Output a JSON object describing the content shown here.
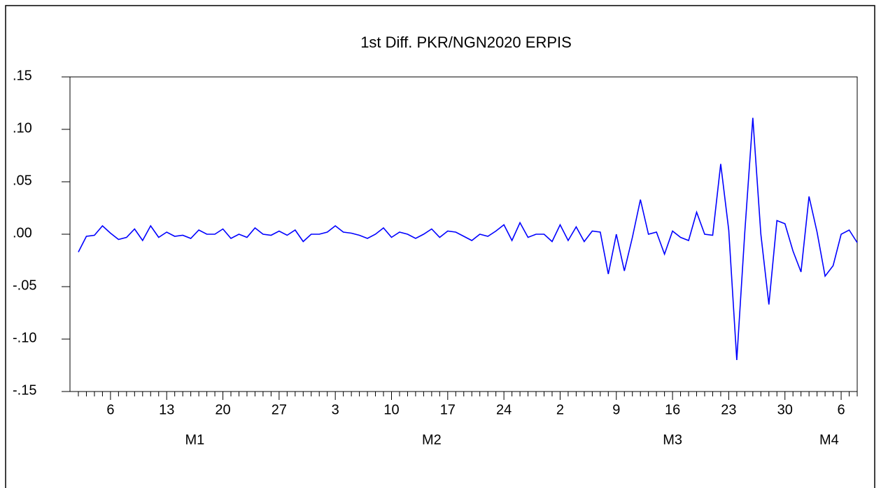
{
  "chart_data": {
    "type": "line",
    "title": "1st Diff. PKR/NGN2020 ERPIS",
    "categories": [
      null,
      null,
      null,
      null,
      6,
      null,
      null,
      null,
      null,
      null,
      null,
      13,
      null,
      null,
      null,
      null,
      null,
      null,
      20,
      null,
      null,
      null,
      null,
      null,
      null,
      27,
      null,
      null,
      null,
      null,
      null,
      null,
      3,
      null,
      null,
      null,
      null,
      null,
      null,
      10,
      null,
      null,
      null,
      null,
      null,
      null,
      17,
      null,
      null,
      null,
      null,
      null,
      null,
      24,
      null,
      null,
      null,
      null,
      null,
      null,
      2,
      null,
      null,
      null,
      null,
      null,
      null,
      9,
      null,
      null,
      null,
      null,
      null,
      null,
      16,
      null,
      null,
      null,
      null,
      null,
      null,
      23,
      null,
      null,
      null,
      null,
      null,
      null,
      30,
      null,
      null,
      null,
      null,
      null,
      null,
      6,
      null,
      null
    ],
    "months": [
      "M1",
      "M2",
      "M3",
      "M4"
    ],
    "series": [
      {
        "name": "1st Diff. PKR/NGN2020 ERPIS",
        "color": "#0000ff",
        "values": [
          -0.017,
          -0.002,
          -0.001,
          0.008,
          0.001,
          -0.005,
          -0.003,
          0.005,
          -0.006,
          0.008,
          -0.003,
          0.002,
          -0.002,
          -0.001,
          -0.004,
          0.004,
          0.0,
          0.0,
          0.005,
          -0.004,
          0.0,
          -0.003,
          0.006,
          0.0,
          -0.001,
          0.003,
          -0.001,
          0.004,
          -0.007,
          0.0,
          0.0,
          0.002,
          0.008,
          0.002,
          0.001,
          -0.001,
          -0.004,
          0.0,
          0.006,
          -0.003,
          0.002,
          0.0,
          -0.004,
          0.0,
          0.005,
          -0.003,
          0.003,
          0.002,
          -0.002,
          -0.006,
          0.0,
          -0.002,
          0.003,
          0.009,
          -0.006,
          0.011,
          -0.003,
          0.0,
          0.0,
          -0.007,
          0.009,
          -0.006,
          0.007,
          -0.007,
          0.003,
          0.002,
          -0.038,
          0.0,
          -0.035,
          -0.003,
          0.033,
          0.0,
          0.002,
          -0.019,
          0.003,
          -0.003,
          -0.006,
          0.021,
          0.0,
          -0.001,
          0.067,
          0.004,
          -0.12,
          0.002,
          0.111,
          0.0,
          -0.067,
          0.013,
          0.01,
          -0.016,
          -0.036,
          0.036,
          0.002,
          -0.04,
          -0.03,
          0.0,
          0.004,
          -0.008
        ]
      }
    ],
    "ylim": [
      -0.15,
      0.15
    ],
    "yticks": [
      {
        "value": 0.15,
        "label": ".15"
      },
      {
        "value": 0.1,
        "label": ".10"
      },
      {
        "value": 0.05,
        "label": ".05"
      },
      {
        "value": 0.0,
        "label": ".00"
      },
      {
        "value": -0.05,
        "label": "-.05"
      },
      {
        "value": -0.1,
        "label": "-.10"
      },
      {
        "value": -0.15,
        "label": "-.15"
      }
    ]
  }
}
